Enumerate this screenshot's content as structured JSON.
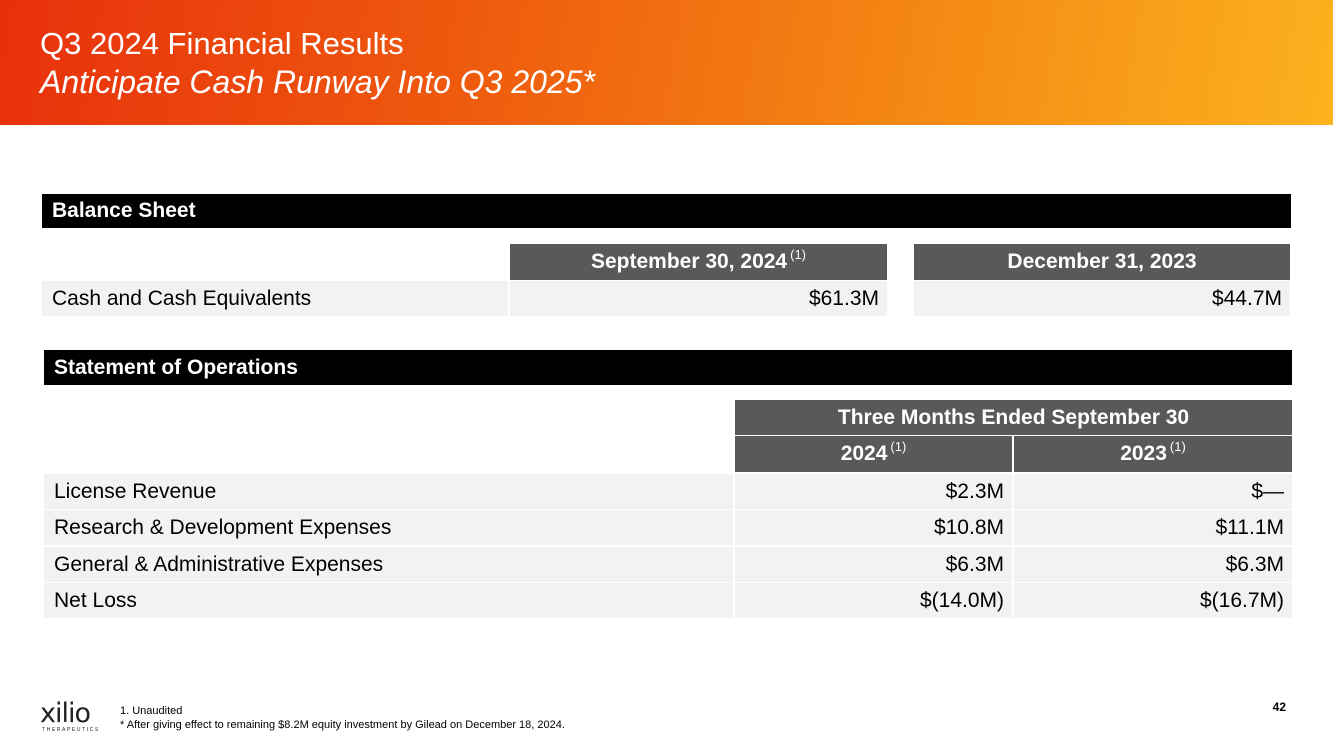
{
  "header": {
    "title": "Q3 2024 Financial Results",
    "subtitle": "Anticipate Cash Runway Into Q3 2025*"
  },
  "balance_sheet": {
    "section_title": "Balance Sheet",
    "columns": [
      {
        "label": "September 30, 2024",
        "footnote": "(1)"
      },
      {
        "label": "December 31, 2023",
        "footnote": ""
      }
    ],
    "rows": [
      {
        "label": "Cash and Cash Equivalents",
        "values": [
          "$61.3M",
          "$44.7M"
        ]
      }
    ]
  },
  "operations": {
    "section_title": "Statement of Operations",
    "period_header": "Three Months Ended September 30",
    "columns": [
      {
        "label": "2024",
        "footnote": "(1)"
      },
      {
        "label": "2023",
        "footnote": "(1)"
      }
    ],
    "rows": [
      {
        "label": "License Revenue",
        "values": [
          "$2.3M",
          "$—"
        ]
      },
      {
        "label": "Research & Development Expenses",
        "values": [
          "$10.8M",
          "$11.1M"
        ]
      },
      {
        "label": "General & Administrative Expenses",
        "values": [
          "$6.3M",
          "$6.3M"
        ]
      },
      {
        "label": "Net Loss",
        "values": [
          "$(14.0M)",
          "$(16.7M)"
        ]
      }
    ]
  },
  "footer": {
    "note1": "1. Unaudited",
    "note2": "* After giving effect to remaining $8.2M equity investment by Gilead on December 18, 2024.",
    "page_number": "42",
    "logo_text": "xilio",
    "logo_tagline": "THERAPEUTICS"
  },
  "colors": {
    "banner_start": "#e8300c",
    "banner_end": "#fbb21e",
    "section_bar": "#000000",
    "column_header": "#595959",
    "row_fill": "#f2f2f2"
  }
}
